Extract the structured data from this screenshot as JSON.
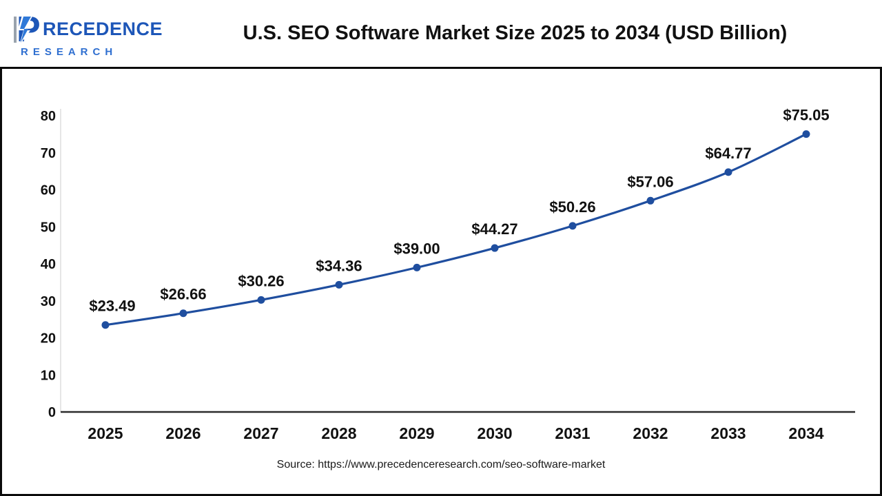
{
  "logo": {
    "brand_top": "RECEDENCE",
    "brand_bottom": "RESEARCH",
    "icon": "precedence-p-icon",
    "color_primary": "#1d56b8",
    "color_secondary": "#2f6fd0"
  },
  "footer": {
    "source": "Source: https://www.precedenceresearch.com/seo-software-market"
  },
  "chart_data": {
    "type": "line",
    "title": "U.S. SEO Software Market Size 2025 to 2034 (USD Billion)",
    "categories": [
      "2025",
      "2026",
      "2027",
      "2028",
      "2029",
      "2030",
      "2031",
      "2032",
      "2033",
      "2034"
    ],
    "values": [
      23.49,
      26.66,
      30.26,
      34.36,
      39.0,
      44.27,
      50.26,
      57.06,
      64.77,
      75.05
    ],
    "labels": [
      "$23.49",
      "$26.66",
      "$30.26",
      "$34.36",
      "$39.00",
      "$44.27",
      "$50.26",
      "$57.06",
      "$64.77",
      "$75.05"
    ],
    "xlabel": "",
    "ylabel": "",
    "ylim": [
      0,
      80
    ],
    "yticks": [
      0,
      10,
      20,
      30,
      40,
      50,
      60,
      70,
      80
    ],
    "grid": false,
    "legend": "none",
    "line_color": "#1f4e9f",
    "marker_color": "#1f4e9f",
    "label_color": "#111111",
    "tick_color": "#111111",
    "axis_color": "#2b2b2b"
  }
}
